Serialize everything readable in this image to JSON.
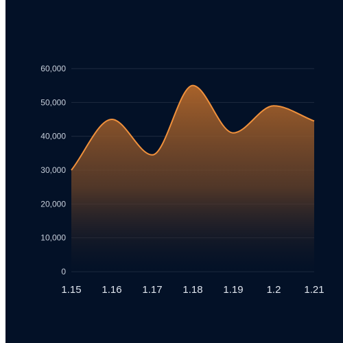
{
  "chart_data": {
    "type": "area",
    "title": "",
    "xlabel": "",
    "ylabel": "",
    "x": [
      "1.15",
      "1.16",
      "1.17",
      "1.18",
      "1.19",
      "1.2",
      "1.21"
    ],
    "y_ticks": [
      "0",
      "10,000",
      "20,000",
      "30,000",
      "40,000",
      "50,000",
      "60,000"
    ],
    "ylim": [
      0,
      60000
    ],
    "series": [
      {
        "values": [
          30000,
          45000,
          34500,
          55000,
          41000,
          49000,
          44500
        ]
      }
    ],
    "smooth": true,
    "grid": true,
    "colors": {
      "background": "#031127",
      "line": "#f0913c",
      "fill_top": "#b0662a",
      "grid": "#1f2c40"
    }
  }
}
